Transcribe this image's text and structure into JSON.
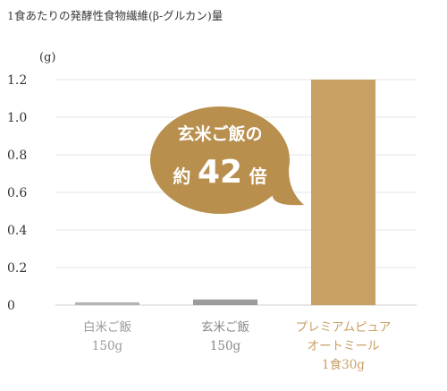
{
  "chart_data": {
    "type": "bar",
    "title": "1食あたりの発酵性食物繊維(β-グルカン)量",
    "ylabel": "(g)",
    "ylim": [
      0,
      1.2
    ],
    "yticks": [
      "0",
      "0.2",
      "0.4",
      "0.6",
      "0.8",
      "1.0",
      "1.2"
    ],
    "yticks_values": [
      0,
      0.2,
      0.4,
      0.6,
      0.8,
      1.0,
      1.2
    ],
    "grid": true,
    "categories": [
      {
        "lines": [
          "白米ご飯",
          "150g"
        ],
        "value": 0.015,
        "color": "#b4b4b4",
        "label_color": "#9a9a9a"
      },
      {
        "lines": [
          "玄米ご飯",
          "150g"
        ],
        "value": 0.03,
        "color": "#9b9b9b",
        "label_color": "#888888"
      },
      {
        "lines": [
          "プレミアムピュア",
          "オートミール",
          "1食30g"
        ],
        "value": 1.2,
        "color": "#c8a064",
        "label_color": "#c8a064"
      }
    ],
    "callout": {
      "line1": "玄米ご飯の",
      "line2_prefix": "約",
      "line2_number": "42",
      "line2_suffix": "倍",
      "color": "#b98f4e"
    }
  }
}
